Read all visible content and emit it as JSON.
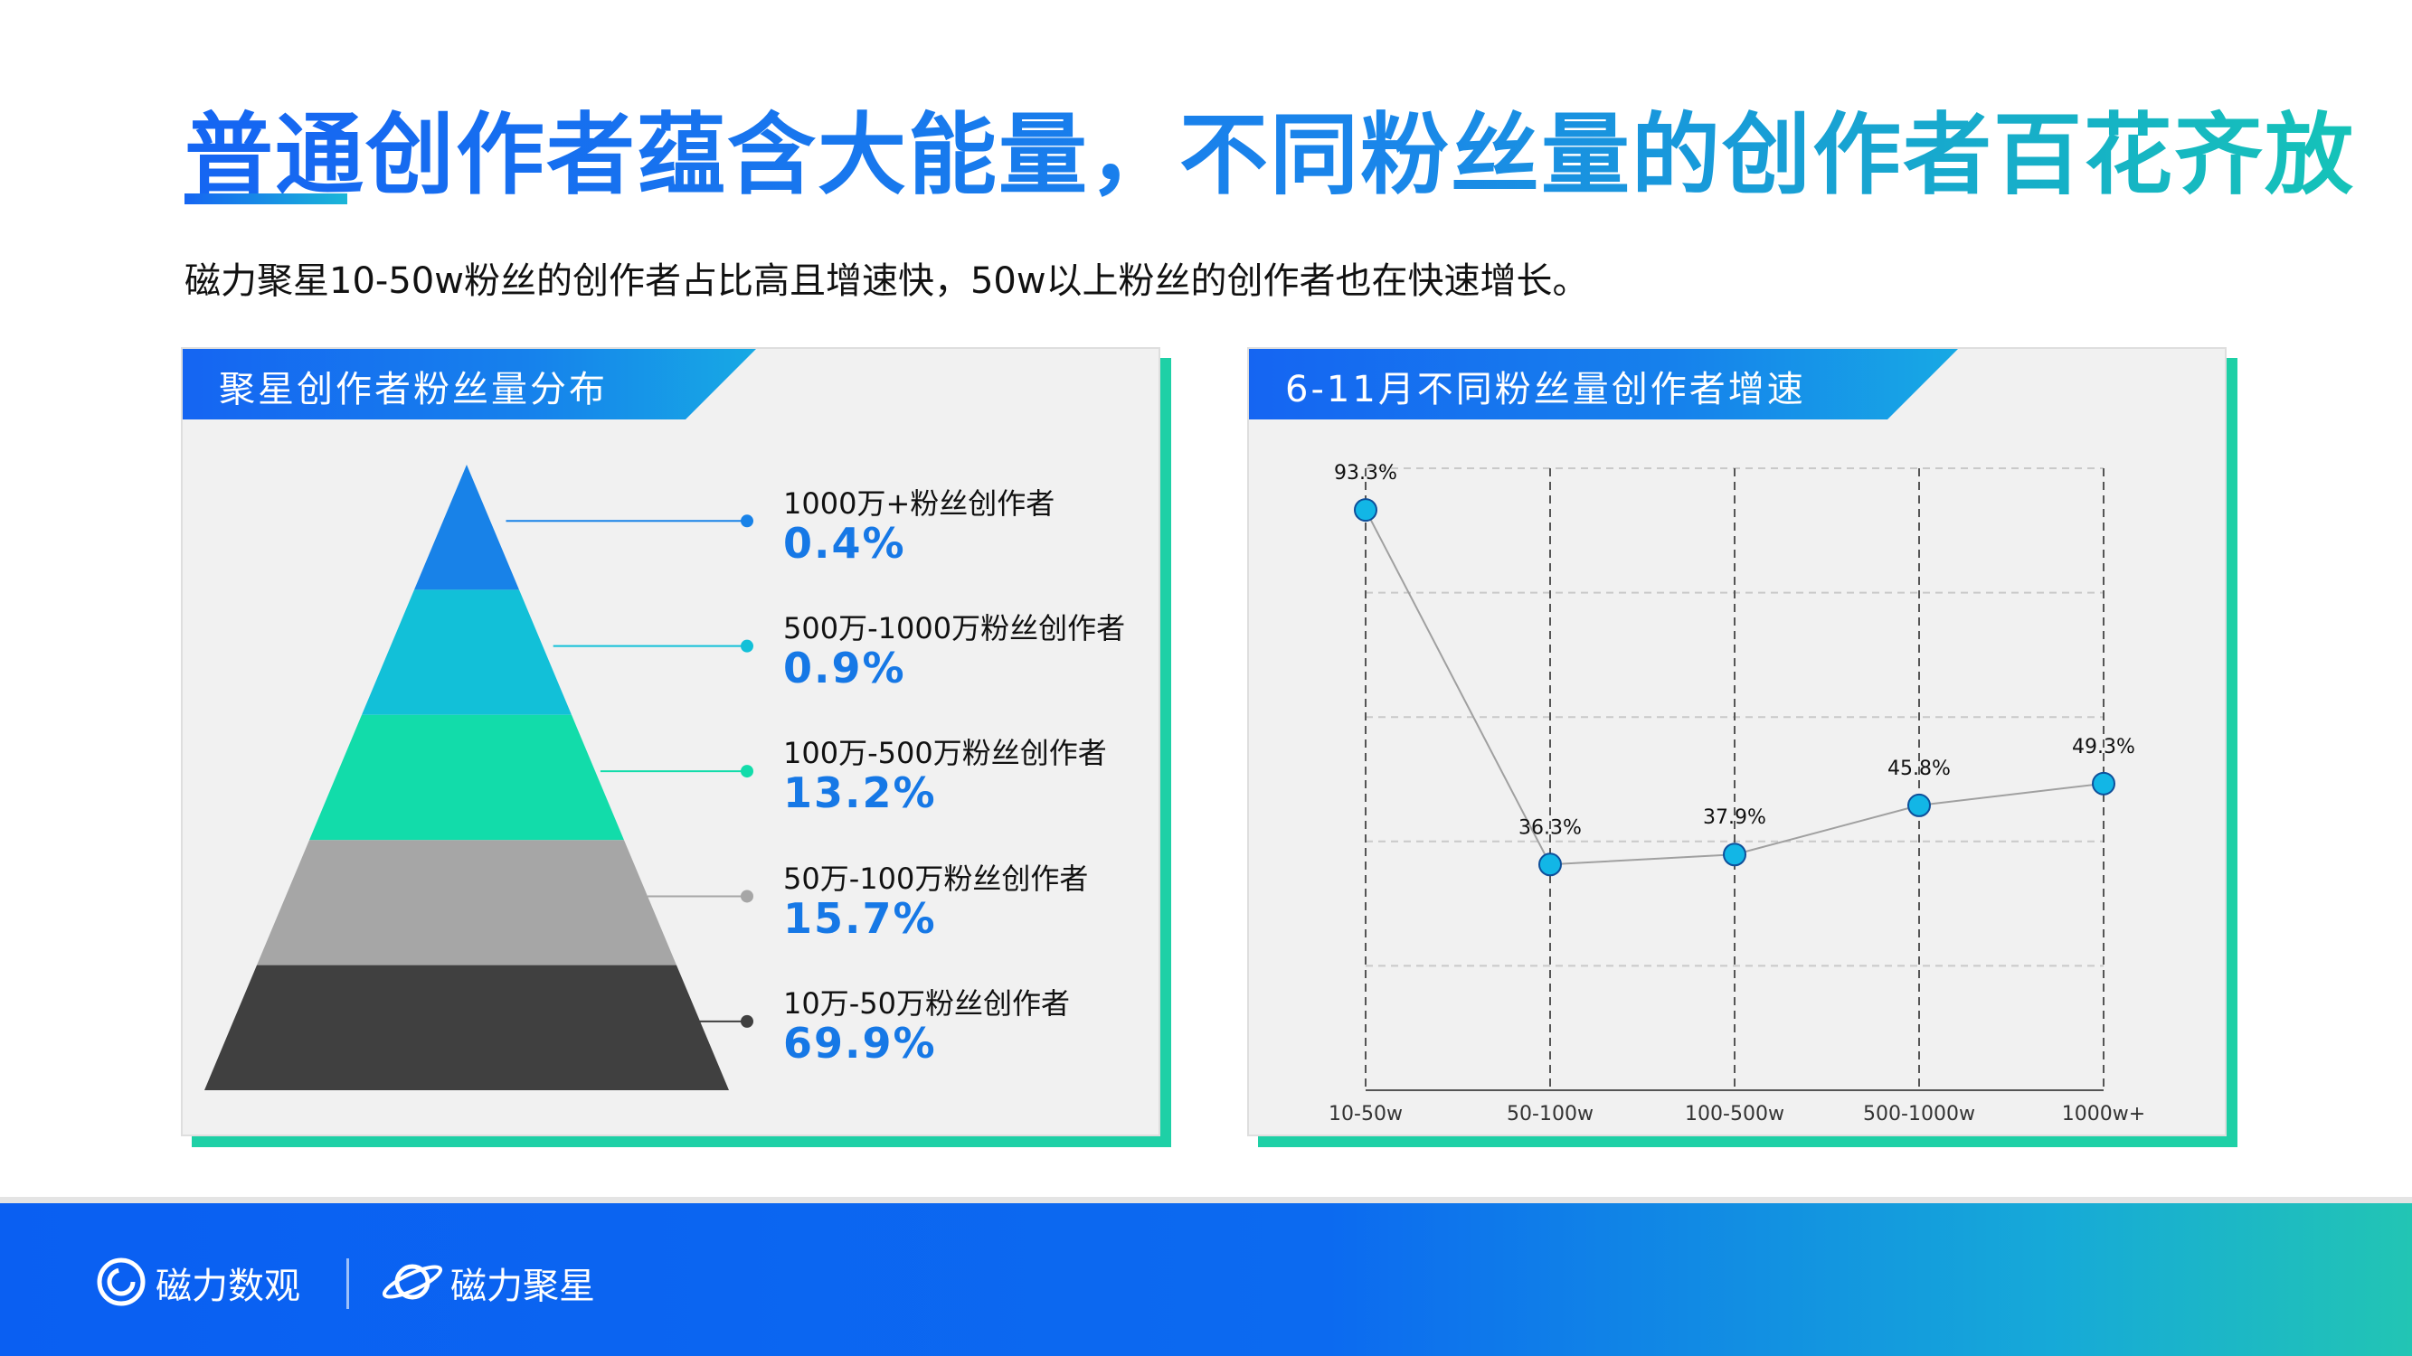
{
  "title": "普通创作者蕴含大能量，不同粉丝量的创作者百花齐放",
  "subtitle": "磁力聚星10-50w粉丝的创作者占比高且增速快，50w以上粉丝的创作者也在快速增长。",
  "left_panel": {
    "header": "聚星创作者粉丝量分布"
  },
  "right_panel": {
    "header": "6-11月不同粉丝量创作者增速"
  },
  "footer": {
    "brand1": "磁力数观",
    "brand2": "磁力聚星"
  },
  "chart_data": [
    {
      "type": "pyramid",
      "categories": [
        "1000万+粉丝创作者",
        "500万-1000万粉丝创作者",
        "100万-500万粉丝创作者",
        "50万-100万粉丝创作者",
        "10万-50万粉丝创作者"
      ],
      "values": [
        0.4,
        0.9,
        13.2,
        15.7,
        69.9
      ],
      "value_labels": [
        "0.4%",
        "0.9%",
        "13.2%",
        "15.7%",
        "69.9%"
      ],
      "colors": [
        "#1882e8",
        "#12c0d8",
        "#12dcaa",
        "#a6a6a6",
        "#404040"
      ]
    },
    {
      "type": "line",
      "categories": [
        "10-50w",
        "50-100w",
        "100-500w",
        "500-1000w",
        "1000w+"
      ],
      "values": [
        93.3,
        36.3,
        37.9,
        45.8,
        49.3
      ],
      "value_labels": [
        "93.3%",
        "36.3%",
        "37.9%",
        "45.8%",
        "49.3%"
      ],
      "grid": true,
      "line_color": "#a0a0a0",
      "marker_color": "#12b6e6"
    }
  ]
}
